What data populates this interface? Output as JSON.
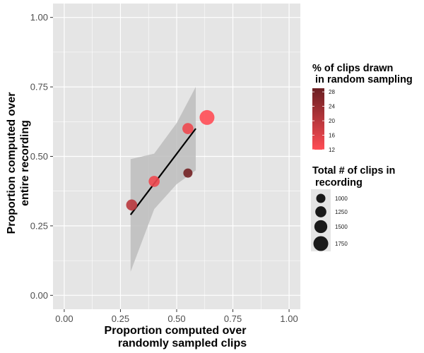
{
  "chart_data": {
    "type": "scatter",
    "xlabel_lines": [
      "Proportion computed over",
      "randomly sampled clips"
    ],
    "ylabel_lines": [
      "Proportion computed over",
      "entire recording"
    ],
    "xlim": [
      -0.05,
      1.05
    ],
    "ylim": [
      -0.05,
      1.05
    ],
    "x_ticks": [
      0.0,
      0.25,
      0.5,
      0.75,
      1.0
    ],
    "x_tick_labels": [
      "0.00",
      "0.25",
      "0.50",
      "0.75",
      "1.00"
    ],
    "y_ticks": [
      0.0,
      0.25,
      0.5,
      0.75,
      1.0
    ],
    "y_tick_labels": [
      "0.00",
      "0.25",
      "0.50",
      "0.75",
      "1.00"
    ],
    "grid": true,
    "points": [
      {
        "x": 0.3,
        "y": 0.325,
        "pct_clips": 20,
        "total_clips": 1250
      },
      {
        "x": 0.4,
        "y": 0.41,
        "pct_clips": 14,
        "total_clips": 1250
      },
      {
        "x": 0.55,
        "y": 0.44,
        "pct_clips": 28,
        "total_clips": 1000
      },
      {
        "x": 0.55,
        "y": 0.6,
        "pct_clips": 14,
        "total_clips": 1250
      },
      {
        "x": 0.635,
        "y": 0.64,
        "pct_clips": 12,
        "total_clips": 1750
      }
    ],
    "fit_line": {
      "x": [
        0.295,
        0.585
      ],
      "y": [
        0.29,
        0.6
      ]
    },
    "confidence_band": {
      "x": [
        0.295,
        0.4,
        0.5,
        0.585
      ],
      "upper": [
        0.49,
        0.51,
        0.62,
        0.75
      ],
      "lower": [
        0.085,
        0.31,
        0.4,
        0.45
      ]
    },
    "color_legend": {
      "title_lines": [
        "% of clips drawn",
        " in random sampling"
      ],
      "ticks": [
        28,
        24,
        20,
        16,
        12
      ],
      "tick_labels": [
        "28",
        "24",
        "20",
        "16",
        "12"
      ],
      "range": [
        12,
        29
      ],
      "color_low": "#ff4d55",
      "color_high": "#6b1f22"
    },
    "size_legend": {
      "title_lines": [
        "Total # of clips in",
        " recording"
      ],
      "values": [
        1000,
        1250,
        1500,
        1750
      ],
      "labels": [
        "1000",
        "1250",
        "1500",
        "1750"
      ],
      "point_color": "#1a1a1a"
    },
    "colors": {
      "panel": "#e5e5e5",
      "grid": "#ffffff",
      "band": "#bdbdbd",
      "fit_line": "#000000"
    }
  }
}
